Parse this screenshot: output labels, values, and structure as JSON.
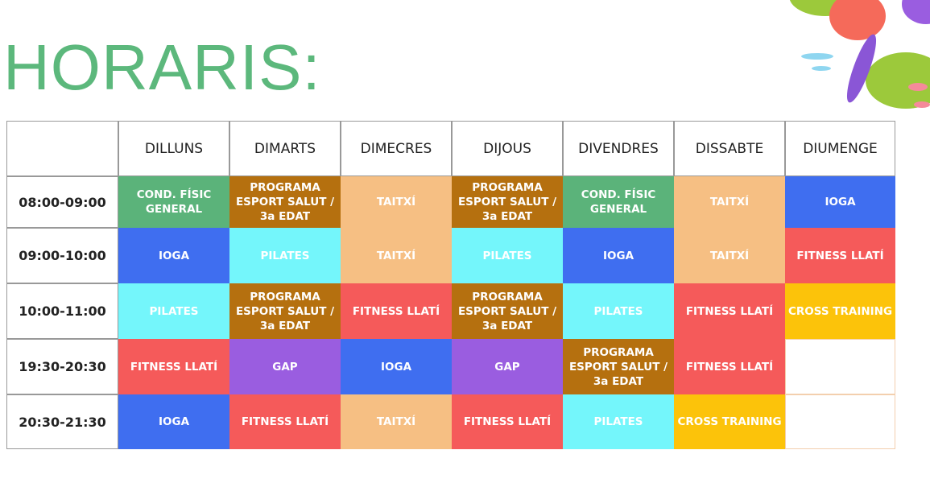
{
  "title": "HORARIS:",
  "table": {
    "columns": [
      "DILLUNS",
      "DIMARTS",
      "DIMECRES",
      "DIJOUS",
      "DIVENDRES",
      "DISSABTE",
      "DIUMENGE"
    ],
    "rows": [
      {
        "time": "08:00-09:00",
        "cells": [
          {
            "text": "COND. FÍSIC\nGENERAL",
            "color": "#5bb37a"
          },
          {
            "text": "PROGRAMA\nESPORT SALUT /\n3a EDAT",
            "color": "#b5700f"
          },
          {
            "text": "TAITXÍ",
            "color": "#f6bf83"
          },
          {
            "text": "PROGRAMA\nESPORT SALUT /\n3a EDAT",
            "color": "#b5700f"
          },
          {
            "text": "COND. FÍSIC\nGENERAL",
            "color": "#5bb37a"
          },
          {
            "text": "TAITXÍ",
            "color": "#f6bf83"
          },
          {
            "text": "IOGA",
            "color": "#3f6ef0"
          }
        ]
      },
      {
        "time": "09:00-10:00",
        "cells": [
          {
            "text": "IOGA",
            "color": "#3f6ef0"
          },
          {
            "text": "PILATES",
            "color": "#74f6fb"
          },
          {
            "text": "TAITXÍ",
            "color": "#f6bf83"
          },
          {
            "text": "PILATES",
            "color": "#74f6fb"
          },
          {
            "text": "IOGA",
            "color": "#3f6ef0"
          },
          {
            "text": "TAITXÍ",
            "color": "#f6bf83"
          },
          {
            "text": "FITNESS LLATÍ",
            "color": "#f55a5a"
          }
        ]
      },
      {
        "time": "10:00-11:00",
        "cells": [
          {
            "text": "PILATES",
            "color": "#74f6fb"
          },
          {
            "text": "PROGRAMA\nESPORT SALUT /\n3a EDAT",
            "color": "#b5700f"
          },
          {
            "text": "FITNESS LLATÍ",
            "color": "#f55a5a"
          },
          {
            "text": "PROGRAMA\nESPORT SALUT /\n3a EDAT",
            "color": "#b5700f"
          },
          {
            "text": "PILATES",
            "color": "#74f6fb"
          },
          {
            "text": "FITNESS LLATÍ",
            "color": "#f55a5a"
          },
          {
            "text": "CROSS TRAINING",
            "color": "#fcc30a"
          }
        ]
      },
      {
        "time": "19:30-20:30",
        "cells": [
          {
            "text": "FITNESS LLATÍ",
            "color": "#f55a5a"
          },
          {
            "text": "GAP",
            "color": "#9a5de0"
          },
          {
            "text": "IOGA",
            "color": "#3f6ef0"
          },
          {
            "text": "GAP",
            "color": "#9a5de0"
          },
          {
            "text": "PROGRAMA\nESPORT SALUT /\n3a EDAT",
            "color": "#b5700f"
          },
          {
            "text": "FITNESS LLATÍ",
            "color": "#f55a5a"
          },
          null
        ]
      },
      {
        "time": "20:30-21:30",
        "cells": [
          {
            "text": "IOGA",
            "color": "#3f6ef0"
          },
          {
            "text": "FITNESS LLATÍ",
            "color": "#f55a5a"
          },
          {
            "text": "TAITXÍ",
            "color": "#f6bf83"
          },
          {
            "text": "FITNESS LLATÍ",
            "color": "#f55a5a"
          },
          {
            "text": "PILATES",
            "color": "#74f6fb"
          },
          {
            "text": "CROSS TRAINING",
            "color": "#fcc30a"
          },
          null
        ]
      }
    ]
  }
}
